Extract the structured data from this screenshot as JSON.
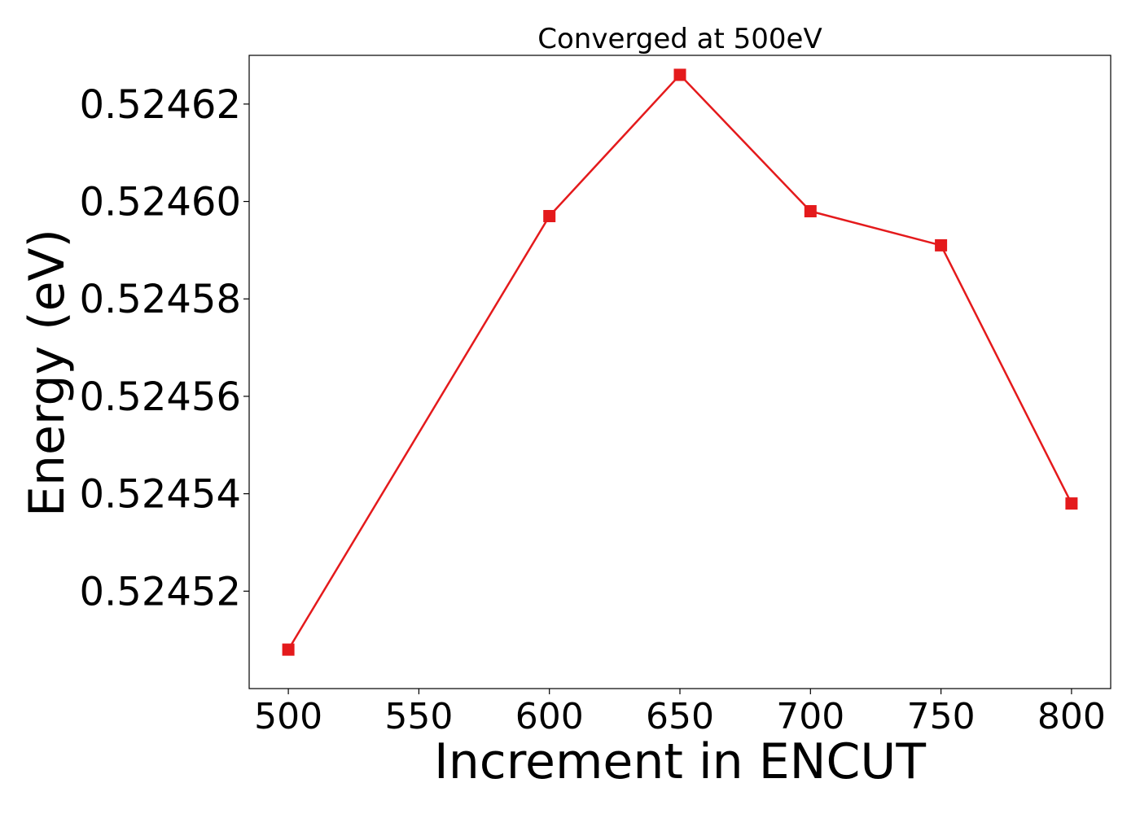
{
  "chart_data": {
    "type": "line",
    "title": "Converged at 500eV",
    "xlabel": "Increment in ENCUT",
    "ylabel": "Energy (eV)",
    "x": [
      500,
      600,
      650,
      700,
      750,
      800
    ],
    "series": [
      {
        "values": [
          0.524508,
          0.524597,
          0.524626,
          0.524598,
          0.524591,
          0.524538
        ]
      }
    ],
    "xticks": [
      "500",
      "550",
      "600",
      "650",
      "700",
      "750",
      "800"
    ],
    "yticks": [
      "0.52452",
      "0.52454",
      "0.52456",
      "0.52458",
      "0.52460",
      "0.52462"
    ],
    "xlim": [
      485,
      815
    ],
    "ylim": [
      0.5245,
      0.52463
    ],
    "marker": "square",
    "color": "#e41a1c",
    "grid": false,
    "legend": "none"
  }
}
